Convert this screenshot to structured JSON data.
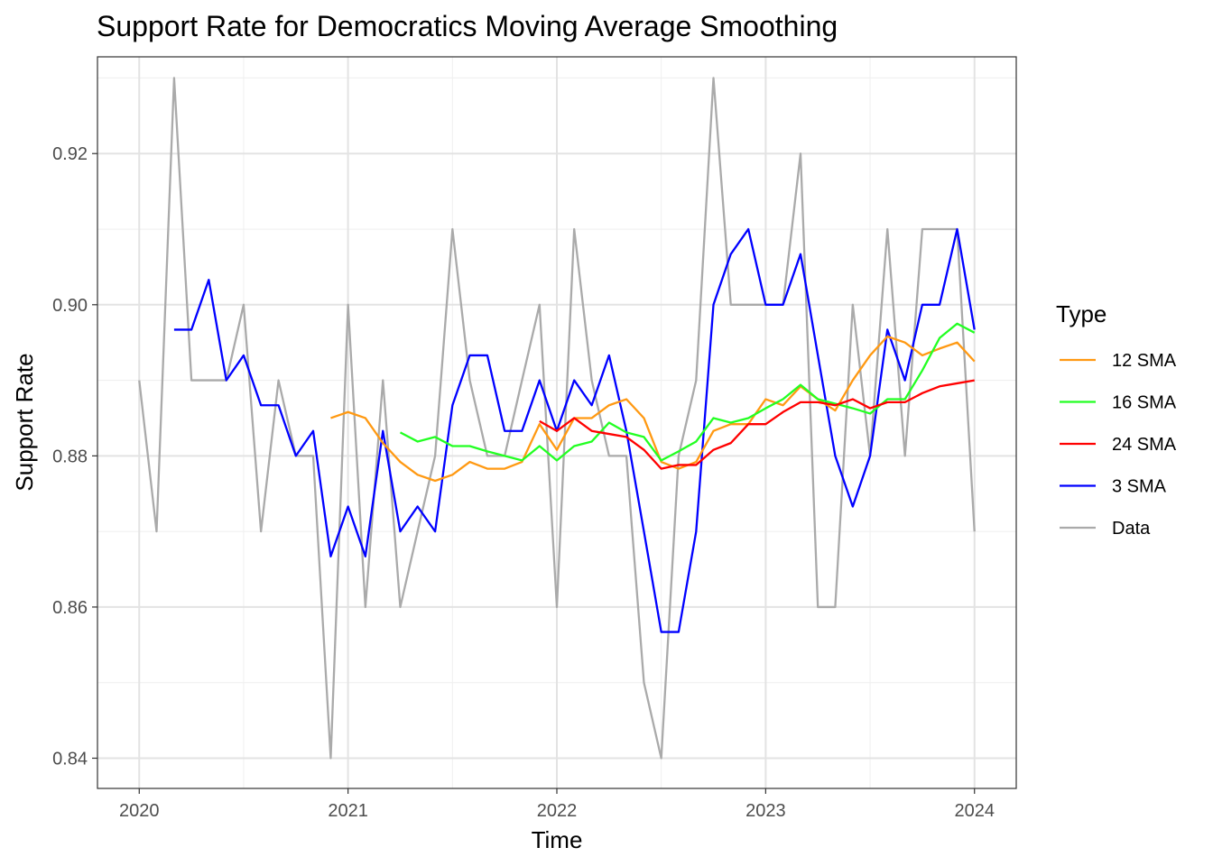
{
  "chart_data": {
    "type": "line",
    "title": "Support Rate for Democratics Moving Average Smoothing",
    "xlabel": "Time",
    "ylabel": "Support Rate",
    "xlim": [
      2019.8,
      2024.2
    ],
    "ylim": [
      0.836,
      0.9328
    ],
    "x_ticks": [
      2020,
      2021,
      2022,
      2023,
      2024
    ],
    "x_tick_labels": [
      "2020",
      "2021",
      "2022",
      "2023",
      "2024"
    ],
    "y_ticks": [
      0.84,
      0.86,
      0.88,
      0.9,
      0.92
    ],
    "y_tick_labels": [
      "0.84",
      "0.86",
      "0.88",
      "0.90",
      "0.92"
    ],
    "grid": true,
    "legend": {
      "title": "Type",
      "position": "right",
      "entries": [
        {
          "label": "12 SMA",
          "color": "#FF9912"
        },
        {
          "label": "16 SMA",
          "color": "#22FF22"
        },
        {
          "label": "24 SMA",
          "color": "#FF0000"
        },
        {
          "label": "3 SMA",
          "color": "#0000FF"
        },
        {
          "label": "Data",
          "color": "#AAAAAA"
        }
      ]
    },
    "series": [
      {
        "name": "Data",
        "color": "#AAAAAA",
        "points": [
          [
            2020.0,
            0.89
          ],
          [
            2020.083,
            0.87
          ],
          [
            2020.167,
            0.93
          ],
          [
            2020.25,
            0.89
          ],
          [
            2020.333,
            0.89
          ],
          [
            2020.417,
            0.89
          ],
          [
            2020.5,
            0.9
          ],
          [
            2020.583,
            0.87
          ],
          [
            2020.667,
            0.89
          ],
          [
            2020.75,
            0.88
          ],
          [
            2020.833,
            0.88
          ],
          [
            2020.917,
            0.84
          ],
          [
            2021.0,
            0.9
          ],
          [
            2021.083,
            0.86
          ],
          [
            2021.167,
            0.89
          ],
          [
            2021.25,
            0.86
          ],
          [
            2021.333,
            0.87
          ],
          [
            2021.417,
            0.88
          ],
          [
            2021.5,
            0.91
          ],
          [
            2021.583,
            0.89
          ],
          [
            2021.667,
            0.88
          ],
          [
            2021.75,
            0.88
          ],
          [
            2021.833,
            0.89
          ],
          [
            2021.917,
            0.9
          ],
          [
            2022.0,
            0.86
          ],
          [
            2022.083,
            0.91
          ],
          [
            2022.167,
            0.89
          ],
          [
            2022.25,
            0.88
          ],
          [
            2022.333,
            0.88
          ],
          [
            2022.417,
            0.85
          ],
          [
            2022.5,
            0.84
          ],
          [
            2022.583,
            0.88
          ],
          [
            2022.667,
            0.89
          ],
          [
            2022.75,
            0.93
          ],
          [
            2022.833,
            0.9
          ],
          [
            2022.917,
            0.9
          ],
          [
            2023.0,
            0.9
          ],
          [
            2023.083,
            0.9
          ],
          [
            2023.167,
            0.92
          ],
          [
            2023.25,
            0.86
          ],
          [
            2023.333,
            0.86
          ],
          [
            2023.417,
            0.9
          ],
          [
            2023.5,
            0.88
          ],
          [
            2023.583,
            0.91
          ],
          [
            2023.667,
            0.88
          ],
          [
            2023.75,
            0.91
          ],
          [
            2023.833,
            0.91
          ],
          [
            2023.917,
            0.91
          ],
          [
            2024.0,
            0.87
          ]
        ]
      },
      {
        "name": "3 SMA",
        "color": "#0000FF",
        "points": [
          [
            2020.167,
            0.8967
          ],
          [
            2020.25,
            0.8967
          ],
          [
            2020.333,
            0.9033
          ],
          [
            2020.417,
            0.89
          ],
          [
            2020.5,
            0.8933
          ],
          [
            2020.583,
            0.8867
          ],
          [
            2020.667,
            0.8867
          ],
          [
            2020.75,
            0.88
          ],
          [
            2020.833,
            0.8833
          ],
          [
            2020.917,
            0.8667
          ],
          [
            2021.0,
            0.8733
          ],
          [
            2021.083,
            0.8667
          ],
          [
            2021.167,
            0.8833
          ],
          [
            2021.25,
            0.87
          ],
          [
            2021.333,
            0.8733
          ],
          [
            2021.417,
            0.87
          ],
          [
            2021.5,
            0.8867
          ],
          [
            2021.583,
            0.8933
          ],
          [
            2021.667,
            0.8933
          ],
          [
            2021.75,
            0.8833
          ],
          [
            2021.833,
            0.8833
          ],
          [
            2021.917,
            0.89
          ],
          [
            2022.0,
            0.8833
          ],
          [
            2022.083,
            0.89
          ],
          [
            2022.167,
            0.8867
          ],
          [
            2022.25,
            0.8933
          ],
          [
            2022.333,
            0.8833
          ],
          [
            2022.417,
            0.87
          ],
          [
            2022.5,
            0.8567
          ],
          [
            2022.583,
            0.8567
          ],
          [
            2022.667,
            0.87
          ],
          [
            2022.75,
            0.9
          ],
          [
            2022.833,
            0.9067
          ],
          [
            2022.917,
            0.91
          ],
          [
            2023.0,
            0.9
          ],
          [
            2023.083,
            0.9
          ],
          [
            2023.167,
            0.9067
          ],
          [
            2023.25,
            0.8933
          ],
          [
            2023.333,
            0.88
          ],
          [
            2023.417,
            0.8733
          ],
          [
            2023.5,
            0.88
          ],
          [
            2023.583,
            0.8967
          ],
          [
            2023.667,
            0.89
          ],
          [
            2023.75,
            0.9
          ],
          [
            2023.833,
            0.9
          ],
          [
            2023.917,
            0.91
          ],
          [
            2024.0,
            0.8967
          ]
        ]
      },
      {
        "name": "12 SMA",
        "color": "#FF9912",
        "points": [
          [
            2020.917,
            0.885
          ],
          [
            2021.0,
            0.8858
          ],
          [
            2021.083,
            0.885
          ],
          [
            2021.167,
            0.8817
          ],
          [
            2021.25,
            0.8792
          ],
          [
            2021.333,
            0.8775
          ],
          [
            2021.417,
            0.8767
          ],
          [
            2021.5,
            0.8775
          ],
          [
            2021.583,
            0.8792
          ],
          [
            2021.667,
            0.8783
          ],
          [
            2021.75,
            0.8783
          ],
          [
            2021.833,
            0.8792
          ],
          [
            2021.917,
            0.8842
          ],
          [
            2022.0,
            0.8808
          ],
          [
            2022.083,
            0.885
          ],
          [
            2022.167,
            0.885
          ],
          [
            2022.25,
            0.8867
          ],
          [
            2022.333,
            0.8875
          ],
          [
            2022.417,
            0.885
          ],
          [
            2022.5,
            0.8792
          ],
          [
            2022.583,
            0.8783
          ],
          [
            2022.667,
            0.8792
          ],
          [
            2022.75,
            0.8833
          ],
          [
            2022.833,
            0.8842
          ],
          [
            2022.917,
            0.8842
          ],
          [
            2023.0,
            0.8875
          ],
          [
            2023.083,
            0.8867
          ],
          [
            2023.167,
            0.8892
          ],
          [
            2023.25,
            0.8875
          ],
          [
            2023.333,
            0.886
          ],
          [
            2023.417,
            0.89
          ],
          [
            2023.5,
            0.8933
          ],
          [
            2023.583,
            0.8958
          ],
          [
            2023.667,
            0.895
          ],
          [
            2023.75,
            0.8933
          ],
          [
            2023.833,
            0.8942
          ],
          [
            2023.917,
            0.895
          ],
          [
            2024.0,
            0.8925
          ]
        ]
      },
      {
        "name": "16 SMA",
        "color": "#22FF22",
        "points": [
          [
            2021.25,
            0.8831
          ],
          [
            2021.333,
            0.8819
          ],
          [
            2021.417,
            0.8825
          ],
          [
            2021.5,
            0.8813
          ],
          [
            2021.583,
            0.8813
          ],
          [
            2021.667,
            0.8806
          ],
          [
            2021.75,
            0.88
          ],
          [
            2021.833,
            0.8794
          ],
          [
            2021.917,
            0.8813
          ],
          [
            2022.0,
            0.8794
          ],
          [
            2022.083,
            0.8813
          ],
          [
            2022.167,
            0.8819
          ],
          [
            2022.25,
            0.8844
          ],
          [
            2022.333,
            0.8831
          ],
          [
            2022.417,
            0.8825
          ],
          [
            2022.5,
            0.8794
          ],
          [
            2022.583,
            0.8806
          ],
          [
            2022.667,
            0.8819
          ],
          [
            2022.75,
            0.885
          ],
          [
            2022.833,
            0.8844
          ],
          [
            2022.917,
            0.885
          ],
          [
            2023.0,
            0.8863
          ],
          [
            2023.083,
            0.8875
          ],
          [
            2023.167,
            0.8894
          ],
          [
            2023.25,
            0.8875
          ],
          [
            2023.333,
            0.8869
          ],
          [
            2023.417,
            0.8863
          ],
          [
            2023.5,
            0.8856
          ],
          [
            2023.583,
            0.8875
          ],
          [
            2023.667,
            0.8875
          ],
          [
            2023.75,
            0.8913
          ],
          [
            2023.833,
            0.8956
          ],
          [
            2023.917,
            0.8975
          ],
          [
            2024.0,
            0.8963
          ]
        ]
      },
      {
        "name": "24 SMA",
        "color": "#FF0000",
        "points": [
          [
            2021.917,
            0.8846
          ],
          [
            2022.0,
            0.8833
          ],
          [
            2022.083,
            0.885
          ],
          [
            2022.167,
            0.8833
          ],
          [
            2022.25,
            0.8829
          ],
          [
            2022.333,
            0.8825
          ],
          [
            2022.417,
            0.8808
          ],
          [
            2022.5,
            0.8783
          ],
          [
            2022.583,
            0.8788
          ],
          [
            2022.667,
            0.8788
          ],
          [
            2022.75,
            0.8808
          ],
          [
            2022.833,
            0.8817
          ],
          [
            2022.917,
            0.8842
          ],
          [
            2023.0,
            0.8842
          ],
          [
            2023.083,
            0.8858
          ],
          [
            2023.167,
            0.8871
          ],
          [
            2023.25,
            0.8871
          ],
          [
            2023.333,
            0.8867
          ],
          [
            2023.417,
            0.8875
          ],
          [
            2023.5,
            0.8863
          ],
          [
            2023.583,
            0.8871
          ],
          [
            2023.667,
            0.8871
          ],
          [
            2023.75,
            0.8883
          ],
          [
            2023.833,
            0.8892
          ],
          [
            2023.917,
            0.8896
          ],
          [
            2024.0,
            0.89
          ]
        ]
      }
    ]
  }
}
